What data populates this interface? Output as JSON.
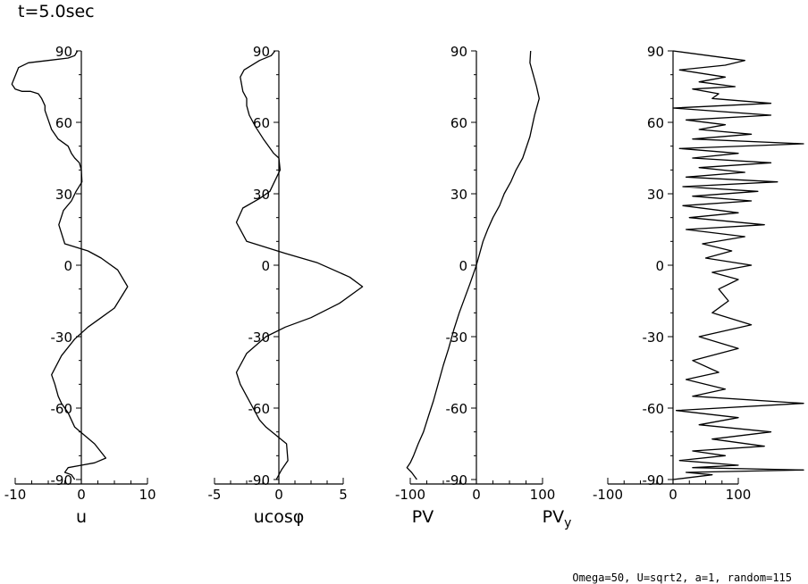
{
  "header": {
    "title": "t=5.0sec"
  },
  "footer": {
    "text": "Omega=50, U=sqrt2, a=1, random=115"
  },
  "chart_data": [
    {
      "type": "line",
      "xlabel": "u",
      "ylabel": "",
      "xlim": [
        -10,
        10
      ],
      "ylim": [
        -90,
        90
      ],
      "xticks": [
        -10,
        0,
        10
      ],
      "yticks": [
        -90,
        -60,
        -30,
        0,
        30,
        60,
        90
      ],
      "series": [
        {
          "x": [
            -0.6,
            -1,
            -2,
            -5,
            -8,
            -9.5,
            -10.5,
            -10,
            -9,
            -7.7,
            -6.5,
            -6,
            -5.5,
            -5.5,
            -5,
            -4.5,
            -3.5,
            -2,
            -1.5,
            -1,
            -0.3,
            0,
            0.1,
            -0.8,
            -1.5,
            -2.7,
            -3.4,
            -2.5,
            1,
            3,
            5.5,
            7,
            5,
            3,
            1,
            -1,
            -3,
            -4.5,
            -4,
            -3.5,
            -3,
            -2,
            -1,
            2,
            3.7,
            2,
            0,
            -2,
            -2.5,
            -1.5,
            -1
          ],
          "y": [
            90,
            88,
            87,
            86,
            85,
            83,
            76,
            74,
            73,
            73,
            72,
            70,
            67,
            65,
            61,
            57,
            53,
            50,
            47,
            45,
            43,
            40,
            35,
            31,
            27,
            23,
            17,
            9,
            6,
            3,
            -2,
            -9,
            -18,
            -22,
            -26,
            -31,
            -38,
            -46,
            -50,
            -55,
            -58,
            -62,
            -68,
            -75,
            -81,
            -83,
            -84,
            -85,
            -87,
            -88,
            -90
          ]
        }
      ]
    },
    {
      "type": "line",
      "xlabel": "ucosφ",
      "ylabel": "",
      "xlim": [
        -5,
        5
      ],
      "ylim": [
        -90,
        90
      ],
      "xticks": [
        -5,
        0,
        5
      ],
      "yticks": [
        -90,
        -60,
        -30,
        0,
        30,
        60,
        90
      ],
      "series": [
        {
          "x": [
            -0.3,
            -0.6,
            -1.5,
            -2.7,
            -3,
            -2.8,
            -2.5,
            -2.5,
            -2.3,
            -1.8,
            -1.2,
            -0.8,
            -0.4,
            0,
            0.1,
            -0.7,
            -1.5,
            -2.8,
            -3.3,
            -2.5,
            0.5,
            3,
            5.5,
            6.5,
            4.7,
            2.5,
            0.5,
            -1,
            -2.5,
            -3.3,
            -3,
            -2.5,
            -2,
            -1.5,
            -1,
            0.6,
            0.7,
            0.2,
            -0.2
          ],
          "y": [
            90,
            88,
            86,
            82,
            79,
            73,
            70,
            67,
            63,
            58,
            53,
            50,
            47,
            45,
            40,
            31,
            28,
            24,
            18,
            10,
            5,
            1,
            -5,
            -9,
            -16,
            -22,
            -26,
            -30,
            -37,
            -45,
            -50,
            -55,
            -60,
            -65,
            -68,
            -75,
            -82,
            -86,
            -90
          ]
        }
      ]
    },
    {
      "type": "line",
      "xlabel": "PV",
      "ylabel": "",
      "xlim": [
        -100,
        100
      ],
      "ylim": [
        -90,
        90
      ],
      "xticks": [
        -100,
        0,
        100
      ],
      "yticks": [
        -90,
        -60,
        -30,
        0,
        30,
        60,
        90
      ],
      "series": [
        {
          "x": [
            82,
            81,
            86,
            91,
            95,
            88,
            84,
            81,
            70,
            60,
            52,
            42,
            35,
            25,
            17,
            10,
            5,
            0,
            -5,
            -10,
            -18,
            -26,
            -34,
            -42,
            -50,
            -58,
            -65,
            -72,
            -80,
            -88,
            -95,
            -100,
            -105,
            -98,
            -90
          ],
          "y": [
            90,
            85,
            80,
            75,
            70,
            63,
            58,
            54,
            45,
            40,
            35,
            30,
            25,
            20,
            15,
            10,
            5,
            0,
            -4,
            -8,
            -14,
            -20,
            -27,
            -35,
            -42,
            -50,
            -57,
            -63,
            -70,
            -75,
            -80,
            -83,
            -85,
            -87,
            -90
          ]
        }
      ]
    },
    {
      "type": "line",
      "xlabel": "PVy",
      "ylabel": "",
      "xlim": [
        -100,
        100
      ],
      "ylim": [
        -90,
        90
      ],
      "xticks": [
        -100,
        0,
        100
      ],
      "yticks": [
        -90,
        -60,
        -30,
        0,
        30,
        60,
        90
      ],
      "series": [
        {
          "x": [
            0,
            110,
            80,
            10,
            80,
            40,
            95,
            30,
            70,
            60,
            150,
            0,
            150,
            20,
            80,
            40,
            120,
            30,
            200,
            10,
            100,
            30,
            150,
            40,
            110,
            20,
            160,
            15,
            130,
            30,
            120,
            15,
            100,
            25,
            140,
            20,
            110,
            45,
            90,
            50,
            120,
            60,
            100,
            70,
            85,
            60,
            120,
            40,
            100,
            30,
            70,
            20,
            80,
            30,
            200,
            5,
            100,
            40,
            150,
            60,
            140,
            30,
            80,
            10,
            100,
            30,
            200,
            20,
            60,
            0
          ],
          "y": [
            90,
            86,
            84,
            82,
            79,
            77,
            75,
            74,
            72,
            70,
            68,
            66,
            63,
            61,
            59,
            57,
            55,
            53,
            51,
            49,
            47,
            45,
            43,
            41,
            39,
            37,
            35,
            33,
            31,
            29,
            27,
            25,
            22,
            20,
            17,
            15,
            12,
            9,
            6,
            3,
            0,
            -3,
            -6,
            -10,
            -15,
            -20,
            -25,
            -30,
            -35,
            -40,
            -45,
            -48,
            -52,
            -55,
            -58,
            -61,
            -64,
            -67,
            -70,
            -73,
            -76,
            -78,
            -80,
            -82,
            -84,
            -85,
            -86,
            -87,
            -88,
            -90
          ]
        }
      ]
    }
  ]
}
